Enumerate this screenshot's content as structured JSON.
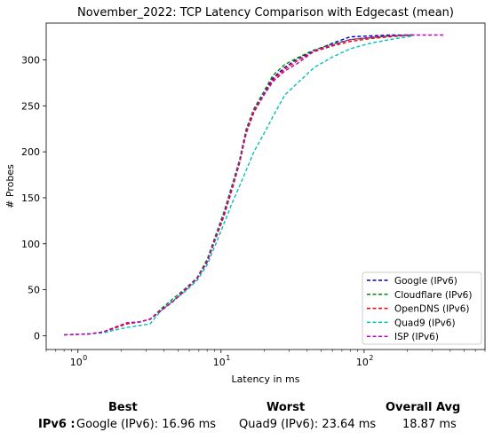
{
  "chart_data": {
    "type": "line",
    "title": "November_2022: TCP Latency Comparison with Edgecast (mean)",
    "xlabel": "Latency in ms",
    "ylabel": "# Probes",
    "xscale": "log",
    "xlim": [
      0.6,
      700
    ],
    "ylim": [
      -15,
      340
    ],
    "x_ticks": [
      1,
      10,
      100
    ],
    "x_tick_labels": [
      "10",
      "10",
      "10"
    ],
    "x_tick_exponents": [
      "0",
      "1",
      "2"
    ],
    "y_ticks": [
      0,
      50,
      100,
      150,
      200,
      250,
      300
    ],
    "y_tick_labels": [
      "0",
      "50",
      "100",
      "150",
      "200",
      "250",
      "300"
    ],
    "legend_position": "lower-right",
    "series": [
      {
        "name": "Google (IPv6)",
        "color": "#0000cc",
        "points": [
          [
            0.8,
            1
          ],
          [
            1.2,
            2
          ],
          [
            1.5,
            4
          ],
          [
            1.8,
            9
          ],
          [
            2.2,
            13
          ],
          [
            2.7,
            15
          ],
          [
            3.2,
            18
          ],
          [
            3.8,
            27
          ],
          [
            4.6,
            37
          ],
          [
            5.6,
            49
          ],
          [
            6.8,
            62
          ],
          [
            8.0,
            82
          ],
          [
            9.2,
            108
          ],
          [
            10.5,
            132
          ],
          [
            12.0,
            163
          ],
          [
            13.5,
            190
          ],
          [
            15.0,
            222
          ],
          [
            17.0,
            245
          ],
          [
            20.0,
            263
          ],
          [
            23.0,
            280
          ],
          [
            28.0,
            292
          ],
          [
            35.0,
            302
          ],
          [
            45.0,
            310
          ],
          [
            60.0,
            318
          ],
          [
            80.0,
            325
          ],
          [
            110.0,
            326
          ],
          [
            150.0,
            327
          ],
          [
            220.0,
            327
          ]
        ]
      },
      {
        "name": "Cloudflare (IPv6)",
        "color": "#008800",
        "points": [
          [
            0.8,
            1
          ],
          [
            1.2,
            2
          ],
          [
            1.5,
            4
          ],
          [
            1.8,
            9
          ],
          [
            2.2,
            14
          ],
          [
            2.7,
            15
          ],
          [
            3.2,
            18
          ],
          [
            3.8,
            29
          ],
          [
            4.6,
            40
          ],
          [
            5.6,
            51
          ],
          [
            6.8,
            63
          ],
          [
            8.0,
            83
          ],
          [
            9.2,
            110
          ],
          [
            10.5,
            135
          ],
          [
            12.0,
            165
          ],
          [
            13.5,
            192
          ],
          [
            15.0,
            225
          ],
          [
            17.0,
            247
          ],
          [
            20.0,
            266
          ],
          [
            23.0,
            283
          ],
          [
            28.0,
            295
          ],
          [
            35.0,
            303
          ],
          [
            45.0,
            311
          ],
          [
            60.0,
            317
          ],
          [
            80.0,
            322
          ],
          [
            110.0,
            324
          ],
          [
            150.0,
            326
          ],
          [
            220.0,
            327
          ]
        ]
      },
      {
        "name": "OpenDNS (IPv6)",
        "color": "#ff0000",
        "points": [
          [
            0.8,
            1
          ],
          [
            1.2,
            2
          ],
          [
            1.5,
            4
          ],
          [
            1.8,
            8
          ],
          [
            2.2,
            13
          ],
          [
            2.7,
            15
          ],
          [
            3.2,
            18
          ],
          [
            3.8,
            27
          ],
          [
            4.6,
            37
          ],
          [
            5.6,
            49
          ],
          [
            6.8,
            62
          ],
          [
            8.0,
            80
          ],
          [
            9.2,
            106
          ],
          [
            10.5,
            130
          ],
          [
            12.0,
            160
          ],
          [
            13.5,
            188
          ],
          [
            15.0,
            220
          ],
          [
            17.0,
            243
          ],
          [
            20.0,
            262
          ],
          [
            23.0,
            278
          ],
          [
            28.0,
            290
          ],
          [
            35.0,
            300
          ],
          [
            45.0,
            309
          ],
          [
            60.0,
            315
          ],
          [
            80.0,
            320
          ],
          [
            110.0,
            323
          ],
          [
            150.0,
            325
          ],
          [
            220.0,
            327
          ]
        ]
      },
      {
        "name": "Quad9 (IPv6)",
        "color": "#00bfbf",
        "points": [
          [
            0.8,
            1
          ],
          [
            1.2,
            2
          ],
          [
            1.5,
            3
          ],
          [
            1.8,
            6
          ],
          [
            2.2,
            9
          ],
          [
            2.7,
            11
          ],
          [
            3.2,
            13
          ],
          [
            3.8,
            27
          ],
          [
            4.6,
            38
          ],
          [
            5.6,
            48
          ],
          [
            6.8,
            60
          ],
          [
            8.0,
            77
          ],
          [
            9.2,
            100
          ],
          [
            10.5,
            122
          ],
          [
            12.0,
            145
          ],
          [
            13.5,
            163
          ],
          [
            15.0,
            180
          ],
          [
            17.0,
            200
          ],
          [
            20.0,
            220
          ],
          [
            23.0,
            238
          ],
          [
            28.0,
            262
          ],
          [
            35.0,
            276
          ],
          [
            45.0,
            292
          ],
          [
            60.0,
            303
          ],
          [
            80.0,
            312
          ],
          [
            110.0,
            318
          ],
          [
            150.0,
            322
          ],
          [
            220.0,
            326
          ]
        ]
      },
      {
        "name": "ISP (IPv6)",
        "color": "#bf00bf",
        "points": [
          [
            0.8,
            1
          ],
          [
            1.2,
            2
          ],
          [
            1.5,
            4
          ],
          [
            1.8,
            9
          ],
          [
            2.2,
            14
          ],
          [
            2.7,
            15
          ],
          [
            3.2,
            18
          ],
          [
            3.8,
            28
          ],
          [
            4.6,
            37
          ],
          [
            5.6,
            50
          ],
          [
            6.8,
            62
          ],
          [
            8.0,
            80
          ],
          [
            9.2,
            107
          ],
          [
            10.5,
            132
          ],
          [
            12.0,
            162
          ],
          [
            13.5,
            189
          ],
          [
            15.0,
            222
          ],
          [
            17.0,
            245
          ],
          [
            20.0,
            262
          ],
          [
            23.0,
            276
          ],
          [
            28.0,
            288
          ],
          [
            35.0,
            297
          ],
          [
            45.0,
            310
          ],
          [
            60.0,
            316
          ],
          [
            80.0,
            322
          ],
          [
            120.0,
            325
          ],
          [
            200.0,
            327
          ],
          [
            370.0,
            327
          ]
        ]
      }
    ]
  },
  "summary": {
    "best_header": "Best",
    "worst_header": "Worst",
    "avg_header": "Overall Avg",
    "row_label": "IPv6 :",
    "best_value": "Google (IPv6): 16.96 ms",
    "worst_value": "Quad9 (IPv6): 23.64 ms",
    "avg_value": "18.87 ms"
  }
}
